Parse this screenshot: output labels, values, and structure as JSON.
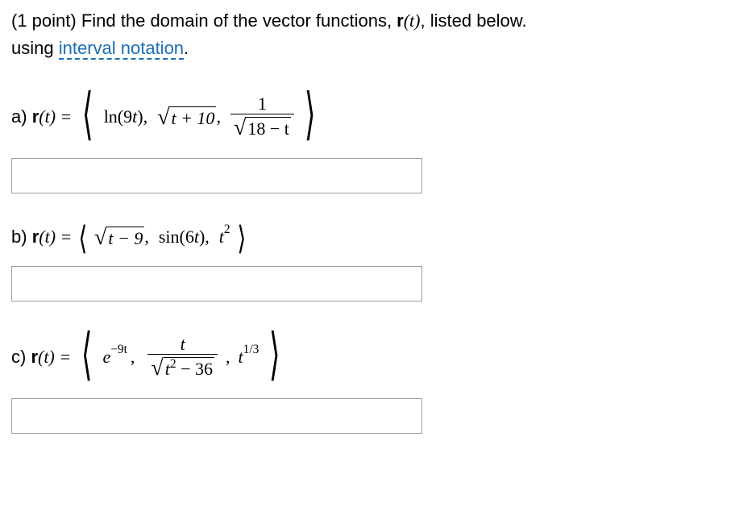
{
  "intro": {
    "points": "(1 point)",
    "text1": "Find the domain of the vector functions, ",
    "vecfn": "r",
    "arg": "(t)",
    "text2": ", listed below.",
    "line2a": "using ",
    "link": "interval notation",
    "period": "."
  },
  "parts": {
    "a": {
      "label": "a) ",
      "lhs_r": "r",
      "lhs_t": "(t) = ",
      "term1a": "ln(9",
      "term1b": "t",
      "term1c": "),",
      "radicand1": "t + 10",
      "frac_num": "1",
      "den_radicand": "18 − t"
    },
    "b": {
      "label": "b) ",
      "lhs_r": "r",
      "lhs_t": "(t) = ",
      "radicand1": "t − 9",
      "term2": "sin(6",
      "term2b": "t",
      "term2c": "),",
      "term3a": "t",
      "term3b": "2"
    },
    "c": {
      "label": "c) ",
      "lhs_r": "r",
      "lhs_t": "(t) = ",
      "term1a": "e",
      "term1b": "−9t",
      "frac_num": "t",
      "den_radicand_a": "t",
      "den_radicand_b": "2",
      "den_radicand_c": " − 36",
      "term3a": "t",
      "term3b": "1/3"
    }
  },
  "style": {
    "text_color": "#000000",
    "link_color": "#1a6db5",
    "bg_color": "#ffffff",
    "input_border": "#9d9d9d",
    "font_size_body": 22,
    "font_size_bigangle": 70,
    "font_size_bigangle_sm": 40,
    "input_width": 510,
    "input_height": 44
  }
}
